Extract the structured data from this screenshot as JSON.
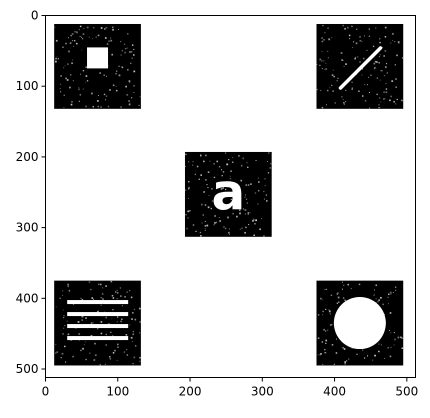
{
  "image": {
    "background": "#000000",
    "foreground": "#ffffff",
    "noise_color": "#8c8c8c",
    "pixel_extent": 512
  },
  "axes": {
    "x_ticks": [
      0,
      100,
      200,
      300,
      400,
      500
    ],
    "y_ticks": [
      0,
      100,
      200,
      300,
      400,
      500
    ]
  },
  "panels": [
    {
      "id": "top-left",
      "content": "square",
      "x": [
        12,
        132
      ],
      "y": [
        12,
        132
      ]
    },
    {
      "id": "top-right",
      "content": "diagonal-line",
      "x": [
        375,
        495
      ],
      "y": [
        12,
        132
      ]
    },
    {
      "id": "center",
      "content": "letter",
      "letter": "a",
      "x": [
        193,
        313
      ],
      "y": [
        193,
        313
      ]
    },
    {
      "id": "bottom-left",
      "content": "horizontal-lines",
      "x": [
        12,
        132
      ],
      "y": [
        375,
        495
      ]
    },
    {
      "id": "bottom-right",
      "content": "circle",
      "x": [
        375,
        495
      ],
      "y": [
        375,
        495
      ]
    }
  ]
}
